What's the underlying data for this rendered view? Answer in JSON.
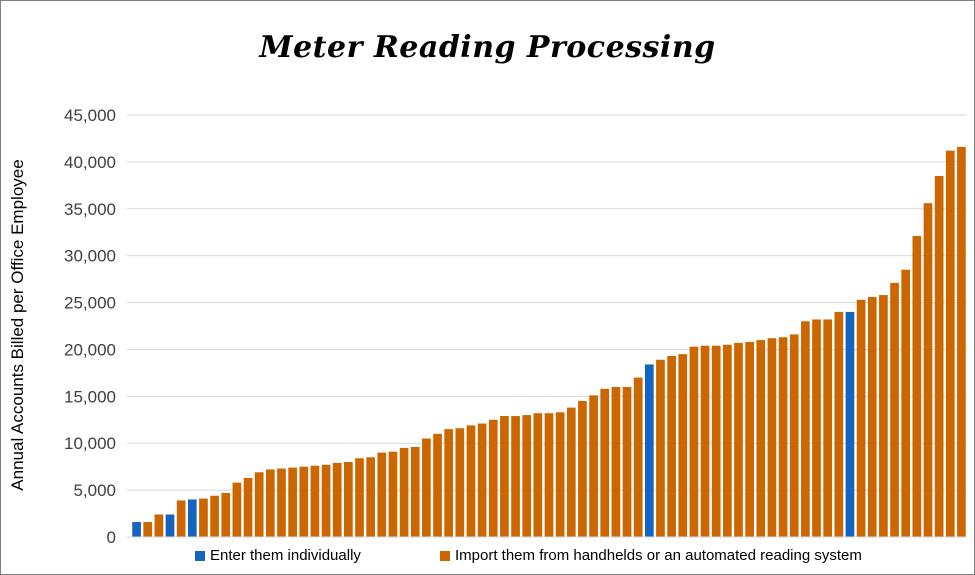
{
  "chart_data": {
    "type": "bar",
    "title": "Meter Reading Processing",
    "xlabel": "",
    "ylabel": "Annual Accounts Billed per Office Employee",
    "ylim": [
      0,
      45000
    ],
    "yticks": [
      0,
      5000,
      10000,
      15000,
      20000,
      25000,
      30000,
      35000,
      40000,
      45000
    ],
    "ytick_labels": [
      "0",
      "5,000",
      "10,000",
      "15,000",
      "20,000",
      "25,000",
      "30,000",
      "35,000",
      "40,000",
      "45,000"
    ],
    "grid": true,
    "legend_position": "bottom",
    "series": [
      {
        "name": "Enter them individually",
        "color": "#1565c0"
      },
      {
        "name": "Import them from handhelds or an automated reading system",
        "color": "#cc6600"
      }
    ],
    "values": [
      1600,
      1600,
      2400,
      2400,
      3900,
      4000,
      4100,
      4400,
      4700,
      5800,
      6300,
      6900,
      7200,
      7300,
      7400,
      7500,
      7600,
      7700,
      7900,
      8000,
      8400,
      8500,
      9000,
      9100,
      9500,
      9600,
      10500,
      11000,
      11500,
      11600,
      11900,
      12100,
      12500,
      12900,
      12900,
      13000,
      13200,
      13200,
      13300,
      13800,
      14500,
      15100,
      15800,
      16000,
      16000,
      17000,
      18400,
      18900,
      19300,
      19500,
      20300,
      20400,
      20400,
      20500,
      20700,
      20800,
      21000,
      21200,
      21300,
      21600,
      23000,
      23200,
      23200,
      24000,
      24000,
      25300,
      25600,
      25800,
      27100,
      28500,
      32100,
      35600,
      38500,
      41200,
      41600
    ],
    "series_index": [
      0,
      1,
      1,
      0,
      1,
      0,
      1,
      1,
      1,
      1,
      1,
      1,
      1,
      1,
      1,
      1,
      1,
      1,
      1,
      1,
      1,
      1,
      1,
      1,
      1,
      1,
      1,
      1,
      1,
      1,
      1,
      1,
      1,
      1,
      1,
      1,
      1,
      1,
      1,
      1,
      1,
      1,
      1,
      1,
      1,
      1,
      0,
      1,
      1,
      1,
      1,
      1,
      1,
      1,
      1,
      1,
      1,
      1,
      1,
      1,
      1,
      1,
      1,
      1,
      0,
      1,
      1,
      1,
      1,
      1,
      1,
      1,
      1,
      1,
      1
    ]
  }
}
